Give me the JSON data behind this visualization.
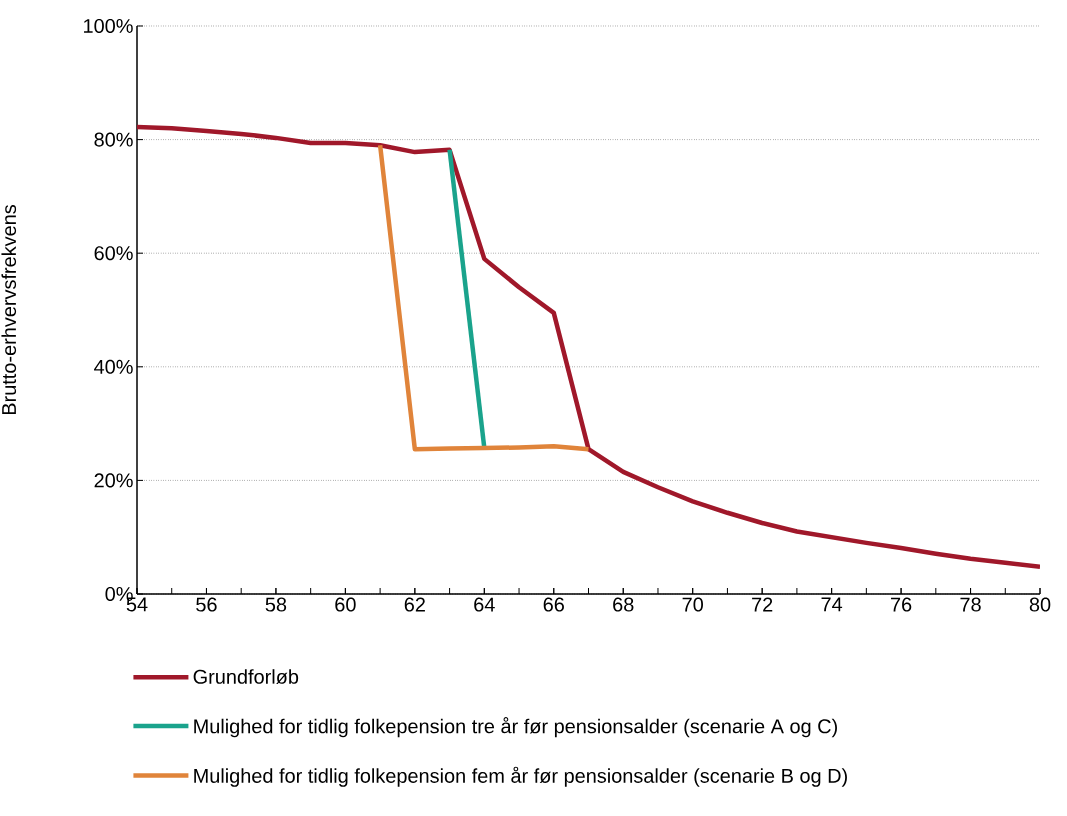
{
  "chart_data": {
    "type": "line",
    "ylabel": "Brutto-erhvervsfrekvens",
    "x": [
      54,
      55,
      56,
      57,
      58,
      59,
      60,
      61,
      62,
      63,
      64,
      65,
      66,
      67,
      68,
      69,
      70,
      71,
      72,
      73,
      74,
      75,
      76,
      77,
      78,
      79,
      80
    ],
    "series": [
      {
        "name": "Grundforløb",
        "color": "#a0182a",
        "values": [
          82.2,
          82.0,
          81.5,
          81.0,
          80.3,
          79.4,
          79.4,
          79.0,
          77.8,
          78.2,
          59,
          54,
          49.5,
          25.5,
          21.5,
          18.8,
          16.3,
          14.3,
          12.5,
          11.0,
          10.0,
          9.0,
          8.1,
          7.1,
          6.2,
          5.5,
          4.8
        ]
      },
      {
        "name": "Mulighed for tidlig folkepension tre år før pensionsalder (scenarie A og C)",
        "color": "#1aa38c",
        "values": [
          null,
          null,
          null,
          null,
          null,
          null,
          null,
          null,
          null,
          78.2,
          25.7,
          null,
          null,
          null,
          null,
          null,
          null,
          null,
          null,
          null,
          null,
          null,
          null,
          null,
          null,
          null,
          null
        ]
      },
      {
        "name": "Mulighed for tidlig folkepension fem år før pensionsalder (scenarie B og D)",
        "color": "#e0843a",
        "values": [
          null,
          null,
          null,
          null,
          null,
          null,
          null,
          79.0,
          25.5,
          25.6,
          25.7,
          25.8,
          26.0,
          25.5,
          null,
          null,
          null,
          null,
          null,
          null,
          null,
          null,
          null,
          null,
          null,
          null,
          null
        ]
      }
    ],
    "xlim": [
      54,
      80
    ],
    "xticks": [
      54,
      56,
      58,
      60,
      62,
      64,
      66,
      68,
      70,
      72,
      74,
      76,
      78,
      80
    ],
    "ylim": [
      0,
      100
    ],
    "yticks": [
      {
        "value": 0,
        "label": "0%"
      },
      {
        "value": 20,
        "label": "20%"
      },
      {
        "value": 40,
        "label": "40%"
      },
      {
        "value": 60,
        "label": "60%"
      },
      {
        "value": 80,
        "label": "80%"
      },
      {
        "value": 100,
        "label": "100%"
      }
    ],
    "grid": "y",
    "legend": "bottom",
    "marker": "none",
    "line_style": "solid"
  }
}
